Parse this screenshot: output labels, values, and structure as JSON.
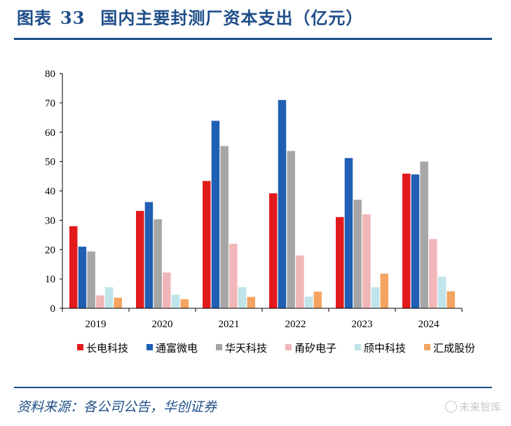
{
  "header": {
    "label": "图表",
    "number": "33",
    "title": "国内主要封测厂资本支出（亿元）"
  },
  "chart_data": {
    "type": "bar",
    "categories": [
      "2019",
      "2020",
      "2021",
      "2022",
      "2023",
      "2024"
    ],
    "ylim": [
      0,
      80
    ],
    "yticks": [
      0,
      10,
      20,
      30,
      40,
      50,
      60,
      70,
      80
    ],
    "grid": false,
    "legend": "bottom",
    "series": [
      {
        "name": "长电科技",
        "color": "#e31a1c",
        "values": [
          28.0,
          33.2,
          43.4,
          39.2,
          31.1,
          45.9
        ]
      },
      {
        "name": "通富微电",
        "color": "#1f5fb4",
        "values": [
          21.0,
          36.2,
          63.9,
          71.0,
          51.2,
          45.6
        ]
      },
      {
        "name": "华天科技",
        "color": "#a6a6a6",
        "values": [
          19.4,
          30.3,
          55.3,
          53.6,
          37.0,
          50.0
        ]
      },
      {
        "name": "甬矽电子",
        "color": "#f1b6b8",
        "values": [
          4.4,
          12.2,
          22.0,
          18.0,
          32.0,
          23.6
        ]
      },
      {
        "name": "颀中科技",
        "color": "#bfe4ea",
        "values": [
          7.2,
          4.6,
          7.2,
          4.0,
          7.2,
          10.8
        ]
      },
      {
        "name": "汇成股份",
        "color": "#f4a460",
        "values": [
          3.6,
          3.1,
          3.9,
          5.7,
          11.8,
          5.8
        ]
      }
    ]
  },
  "footer": {
    "source": "资料来源：各公司公告，华创证券"
  },
  "watermark": {
    "text": "未来智库"
  }
}
